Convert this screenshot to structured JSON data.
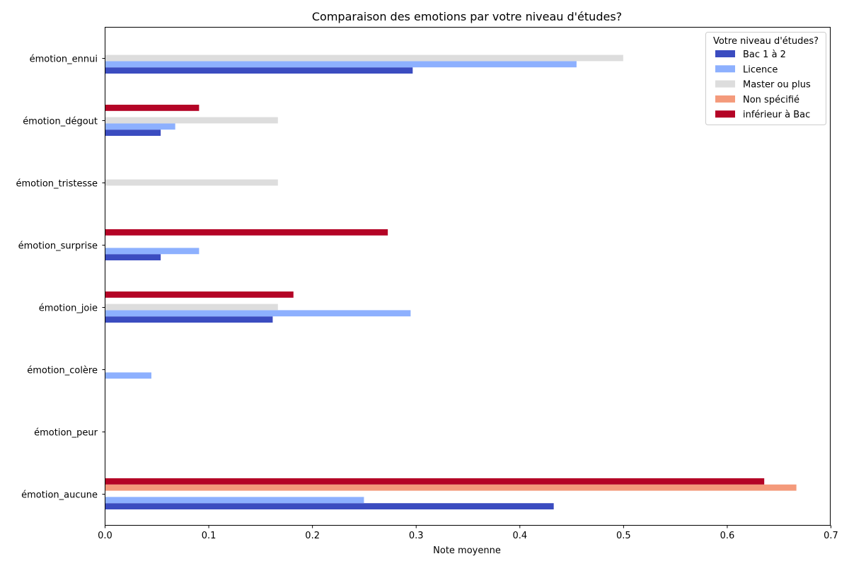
{
  "chart_data": {
    "type": "bar",
    "orientation": "horizontal",
    "title": "Comparaison des emotions par votre niveau d'études?",
    "xlabel": "Note moyenne",
    "ylabel": "",
    "xlim": [
      0,
      0.7
    ],
    "xticks": [
      "0.0",
      "0.1",
      "0.2",
      "0.3",
      "0.4",
      "0.5",
      "0.6",
      "0.7"
    ],
    "categories": [
      "émotion_aucune",
      "émotion_peur",
      "émotion_colère",
      "émotion_joie",
      "émotion_surprise",
      "émotion_tristesse",
      "émotion_dégout",
      "émotion_ennui"
    ],
    "legend_title": "Votre niveau d'études?",
    "legend_position": "upper right",
    "grid": false,
    "series": [
      {
        "name": "Bac 1 à 2",
        "color": "#3b4cc0",
        "values": [
          0.433,
          0,
          0,
          0.162,
          0.054,
          0,
          0.054,
          0.297
        ]
      },
      {
        "name": "Licence",
        "color": "#8db0fe",
        "values": [
          0.25,
          0,
          0.045,
          0.295,
          0.091,
          0,
          0.068,
          0.455
        ]
      },
      {
        "name": "Master ou plus",
        "color": "#dddddd",
        "values": [
          0,
          0,
          0,
          0.167,
          0,
          0.167,
          0.167,
          0.5
        ]
      },
      {
        "name": "Non spécifié",
        "color": "#f49a7b",
        "values": [
          0.667,
          0,
          0,
          0,
          0,
          0,
          0,
          0
        ]
      },
      {
        "name": "inférieur à Bac",
        "color": "#b40426",
        "values": [
          0.636,
          0,
          0,
          0.182,
          0.273,
          0,
          0.091,
          0
        ]
      }
    ]
  }
}
